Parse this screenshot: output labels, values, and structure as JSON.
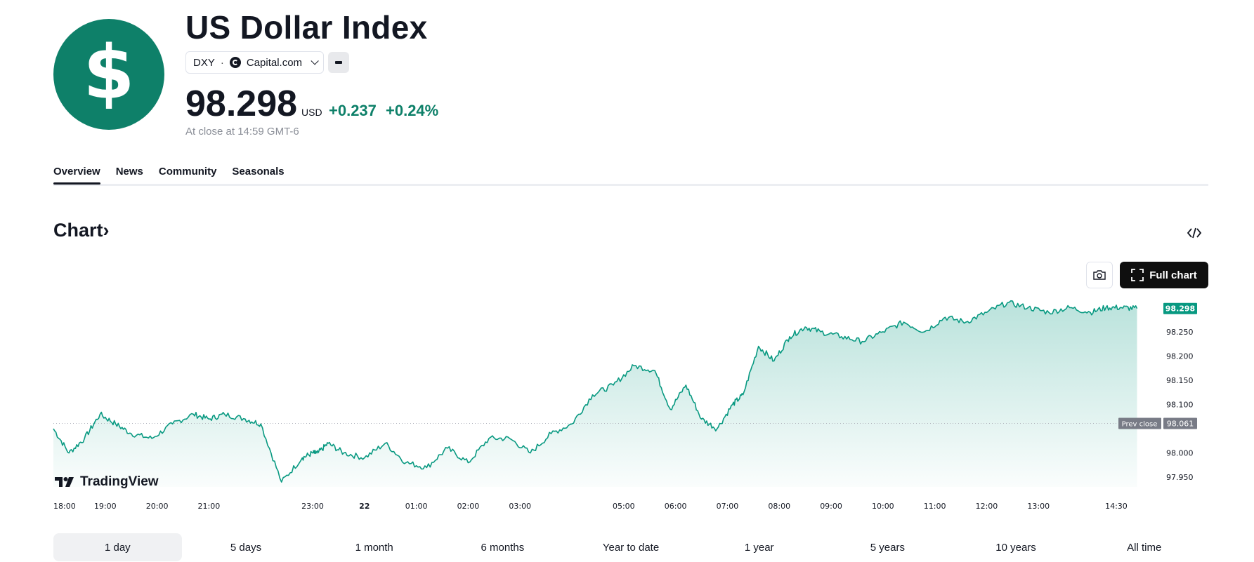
{
  "symbol": {
    "name": "US Dollar Index",
    "ticker": "DXY",
    "separator": "·",
    "source": "Capital.com",
    "logo_icon": "dollar-icon",
    "brand_color": "#0e8069"
  },
  "quote": {
    "price": "98.298",
    "currency": "USD",
    "change": "+0.237",
    "change_percent": "+0.24%",
    "close_note": "At close at 14:59 GMT-6",
    "positive_color": "#0e8069"
  },
  "tabs": [
    {
      "label": "Overview",
      "active": true
    },
    {
      "label": "News",
      "active": false
    },
    {
      "label": "Community",
      "active": false
    },
    {
      "label": "Seasonals",
      "active": false
    }
  ],
  "chart_section": {
    "heading": "Chart",
    "heading_arrow": "›",
    "embed_icon": "code-embed-icon",
    "camera_icon": "camera-icon",
    "full_chart_label": "Full chart",
    "full_chart_icon": "fullscreen-icon",
    "watermark": "TradingView"
  },
  "chart_data": {
    "type": "area",
    "title": "",
    "xlabel": "",
    "ylabel": "",
    "x_tick_labels": [
      "18:00",
      "19:00",
      "20:00",
      "21:00",
      "23:00",
      "22",
      "01:00",
      "02:00",
      "03:00",
      "05:00",
      "06:00",
      "07:00",
      "08:00",
      "09:00",
      "10:00",
      "11:00",
      "12:00",
      "13:00",
      "14:30"
    ],
    "y_tick_labels": [
      "98.250",
      "98.200",
      "98.150",
      "98.100",
      "98.000",
      "97.950"
    ],
    "y_ticks": [
      98.25,
      98.2,
      98.15,
      98.1,
      98.0,
      97.95
    ],
    "ylim": [
      97.93,
      98.315
    ],
    "x_range_hours": [
      0,
      21.3
    ],
    "x_tick_hours": [
      0,
      1,
      2,
      3,
      5,
      6,
      7,
      8,
      9,
      11,
      12,
      13,
      14,
      15,
      16,
      17,
      18,
      19,
      20.5
    ],
    "series": [
      {
        "name": "DXY",
        "x_hours": [
          0,
          0.3,
          0.6,
          0.9,
          1.2,
          1.5,
          1.9,
          2.3,
          2.7,
          3.0,
          3.3,
          3.7,
          4.0,
          4.4,
          4.8,
          5.0,
          5.1,
          5.3,
          5.6,
          6.0,
          6.4,
          6.8,
          7.2,
          7.6,
          8.0,
          8.4,
          8.8,
          9.2,
          9.6,
          10.0,
          10.4,
          10.8,
          11.2,
          11.6,
          11.9,
          12.2,
          12.5,
          12.8,
          13.1,
          13.3,
          13.6,
          13.9,
          14.2,
          14.5,
          14.8,
          15.2,
          15.6,
          16.0,
          16.4,
          16.8,
          17.2,
          17.6,
          18.0,
          18.4,
          18.8,
          19.2,
          19.6,
          20.0,
          20.3,
          20.6,
          20.9
        ],
        "values": [
          98.05,
          98.0,
          98.03,
          98.08,
          98.06,
          98.04,
          98.03,
          98.06,
          98.08,
          98.07,
          98.08,
          98.07,
          98.06,
          97.94,
          97.99,
          98.0,
          98.0,
          98.02,
          98.0,
          97.99,
          98.02,
          97.98,
          97.97,
          98.01,
          97.98,
          98.03,
          98.03,
          98.0,
          98.04,
          98.06,
          98.12,
          98.14,
          98.18,
          98.17,
          98.09,
          98.14,
          98.07,
          98.05,
          98.1,
          98.12,
          98.22,
          98.19,
          98.24,
          98.26,
          98.25,
          98.24,
          98.23,
          98.25,
          98.27,
          98.25,
          98.28,
          98.27,
          98.29,
          98.31,
          98.3,
          98.29,
          98.3,
          98.29,
          98.3,
          98.3,
          98.298
        ],
        "color": "#089981"
      }
    ],
    "last_value_label": "98.298",
    "prev_close": 98.061,
    "prev_close_caption": "Prev close",
    "prev_close_label": "98.061",
    "last_label_color": "#089981",
    "prev_close_color": "#787b86"
  },
  "ranges": [
    {
      "label": "1 day",
      "active": true
    },
    {
      "label": "5 days",
      "active": false
    },
    {
      "label": "1 month",
      "active": false
    },
    {
      "label": "6 months",
      "active": false
    },
    {
      "label": "Year to date",
      "active": false
    },
    {
      "label": "1 year",
      "active": false
    },
    {
      "label": "5 years",
      "active": false
    },
    {
      "label": "10 years",
      "active": false
    },
    {
      "label": "All time",
      "active": false
    }
  ]
}
